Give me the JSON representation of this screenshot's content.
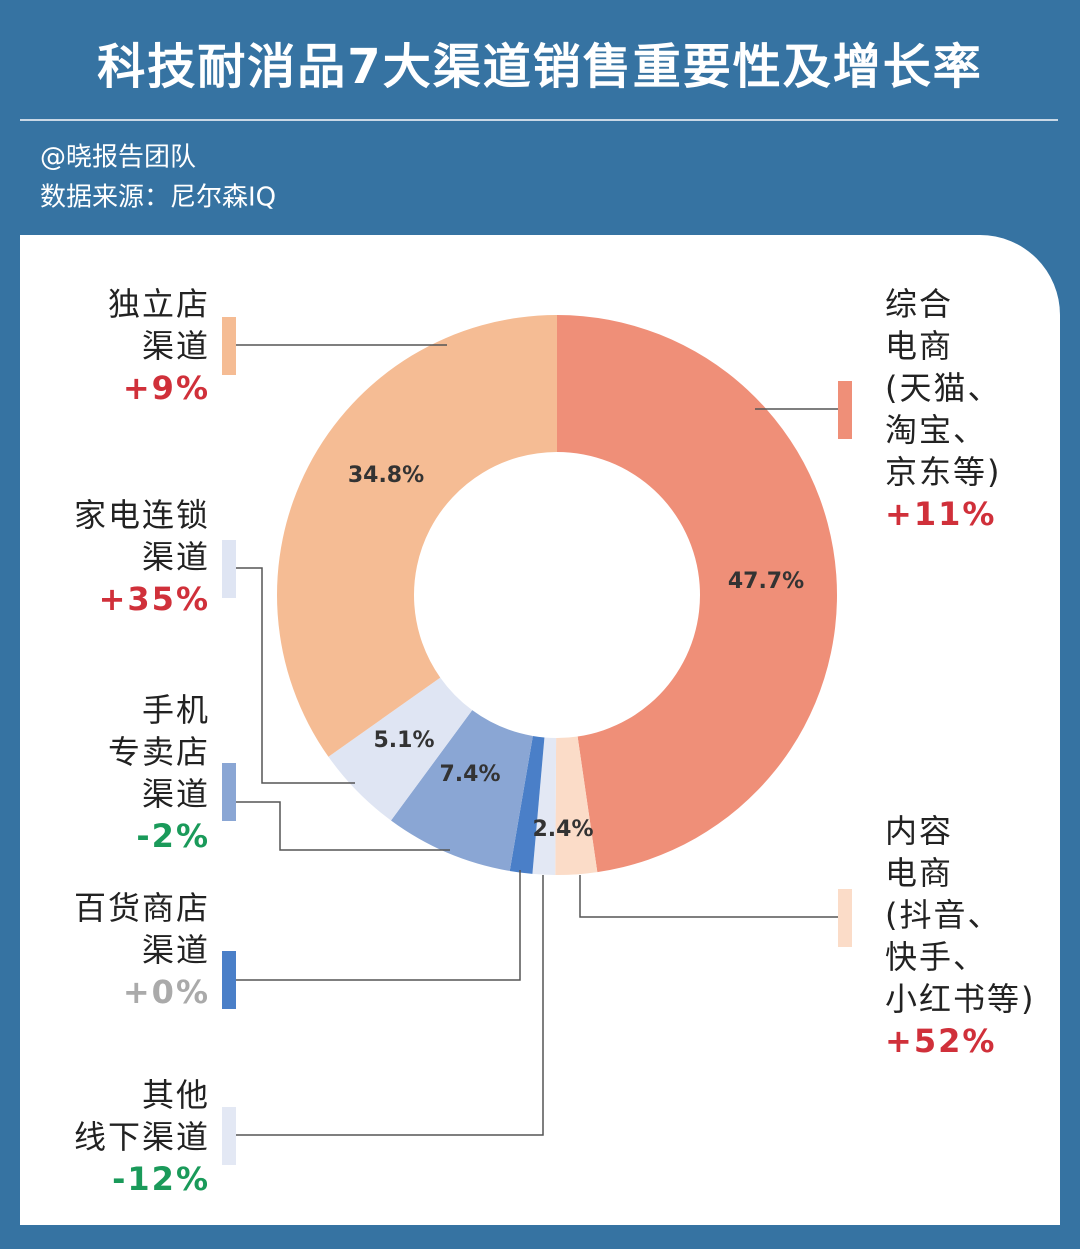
{
  "chart_data": {
    "type": "donut",
    "title": "科技耐消品7大渠道销售重要性及增长率",
    "author": "@晓报告团队",
    "source": "数据来源：尼尔森IQ",
    "categories": [
      [
        "综合",
        "电商",
        "(天猫、",
        "淘宝、",
        "京东等)"
      ],
      [
        "内容",
        "电商",
        "(抖音、",
        "快手、",
        "小红书等)"
      ],
      [
        "其他",
        "线下渠道"
      ],
      [
        "百货商店",
        "渠道"
      ],
      [
        "手机",
        "专卖店",
        "渠道"
      ],
      [
        "家电连锁",
        "渠道"
      ],
      [
        "独立店",
        "渠道"
      ]
    ],
    "values": [
      47.7,
      2.4,
      1.3,
      1.3,
      7.4,
      5.1,
      34.8
    ],
    "value_labels": [
      "47.7%",
      "2.4%",
      null,
      null,
      "7.4%",
      "5.1%",
      "34.8%"
    ],
    "colors": [
      "#ef8f78",
      "#fbdcc8",
      "#e3e8f4",
      "#4a7fc8",
      "#8aa6d4",
      "#dfe5f3",
      "#f5bc94"
    ],
    "growth": [
      11,
      52,
      -12,
      0,
      -2,
      35,
      9
    ],
    "growth_labels": [
      "+11%",
      "+52%",
      "-12%",
      "+0%",
      "-2%",
      "+35%",
      "+9%"
    ]
  }
}
